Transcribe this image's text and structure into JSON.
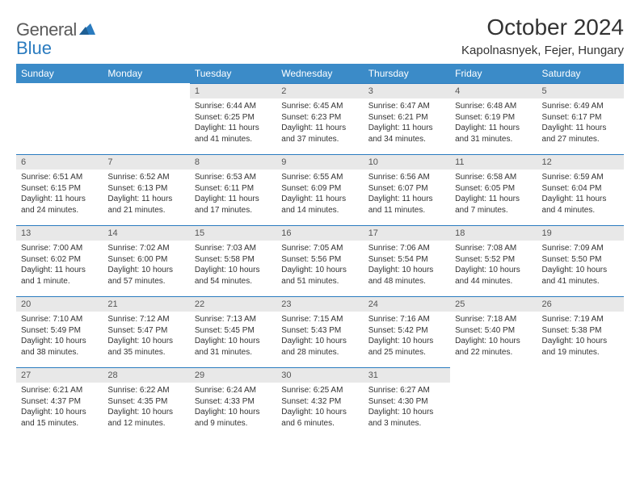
{
  "logo": {
    "name": "General",
    "blue": "Blue"
  },
  "title": "October 2024",
  "location": "Kapolnasnyek, Fejer, Hungary",
  "colors": {
    "header_bg": "#3b8bc8",
    "header_text": "#ffffff",
    "daynum_bg": "#e8e8e8",
    "daynum_border": "#2a7bbf",
    "body_text": "#333333"
  },
  "week_days": [
    "Sunday",
    "Monday",
    "Tuesday",
    "Wednesday",
    "Thursday",
    "Friday",
    "Saturday"
  ],
  "weeks": [
    [
      {
        "n": "",
        "sr": "",
        "ss": "",
        "dl": ""
      },
      {
        "n": "",
        "sr": "",
        "ss": "",
        "dl": ""
      },
      {
        "n": "1",
        "sr": "Sunrise: 6:44 AM",
        "ss": "Sunset: 6:25 PM",
        "dl": "Daylight: 11 hours and 41 minutes."
      },
      {
        "n": "2",
        "sr": "Sunrise: 6:45 AM",
        "ss": "Sunset: 6:23 PM",
        "dl": "Daylight: 11 hours and 37 minutes."
      },
      {
        "n": "3",
        "sr": "Sunrise: 6:47 AM",
        "ss": "Sunset: 6:21 PM",
        "dl": "Daylight: 11 hours and 34 minutes."
      },
      {
        "n": "4",
        "sr": "Sunrise: 6:48 AM",
        "ss": "Sunset: 6:19 PM",
        "dl": "Daylight: 11 hours and 31 minutes."
      },
      {
        "n": "5",
        "sr": "Sunrise: 6:49 AM",
        "ss": "Sunset: 6:17 PM",
        "dl": "Daylight: 11 hours and 27 minutes."
      }
    ],
    [
      {
        "n": "6",
        "sr": "Sunrise: 6:51 AM",
        "ss": "Sunset: 6:15 PM",
        "dl": "Daylight: 11 hours and 24 minutes."
      },
      {
        "n": "7",
        "sr": "Sunrise: 6:52 AM",
        "ss": "Sunset: 6:13 PM",
        "dl": "Daylight: 11 hours and 21 minutes."
      },
      {
        "n": "8",
        "sr": "Sunrise: 6:53 AM",
        "ss": "Sunset: 6:11 PM",
        "dl": "Daylight: 11 hours and 17 minutes."
      },
      {
        "n": "9",
        "sr": "Sunrise: 6:55 AM",
        "ss": "Sunset: 6:09 PM",
        "dl": "Daylight: 11 hours and 14 minutes."
      },
      {
        "n": "10",
        "sr": "Sunrise: 6:56 AM",
        "ss": "Sunset: 6:07 PM",
        "dl": "Daylight: 11 hours and 11 minutes."
      },
      {
        "n": "11",
        "sr": "Sunrise: 6:58 AM",
        "ss": "Sunset: 6:05 PM",
        "dl": "Daylight: 11 hours and 7 minutes."
      },
      {
        "n": "12",
        "sr": "Sunrise: 6:59 AM",
        "ss": "Sunset: 6:04 PM",
        "dl": "Daylight: 11 hours and 4 minutes."
      }
    ],
    [
      {
        "n": "13",
        "sr": "Sunrise: 7:00 AM",
        "ss": "Sunset: 6:02 PM",
        "dl": "Daylight: 11 hours and 1 minute."
      },
      {
        "n": "14",
        "sr": "Sunrise: 7:02 AM",
        "ss": "Sunset: 6:00 PM",
        "dl": "Daylight: 10 hours and 57 minutes."
      },
      {
        "n": "15",
        "sr": "Sunrise: 7:03 AM",
        "ss": "Sunset: 5:58 PM",
        "dl": "Daylight: 10 hours and 54 minutes."
      },
      {
        "n": "16",
        "sr": "Sunrise: 7:05 AM",
        "ss": "Sunset: 5:56 PM",
        "dl": "Daylight: 10 hours and 51 minutes."
      },
      {
        "n": "17",
        "sr": "Sunrise: 7:06 AM",
        "ss": "Sunset: 5:54 PM",
        "dl": "Daylight: 10 hours and 48 minutes."
      },
      {
        "n": "18",
        "sr": "Sunrise: 7:08 AM",
        "ss": "Sunset: 5:52 PM",
        "dl": "Daylight: 10 hours and 44 minutes."
      },
      {
        "n": "19",
        "sr": "Sunrise: 7:09 AM",
        "ss": "Sunset: 5:50 PM",
        "dl": "Daylight: 10 hours and 41 minutes."
      }
    ],
    [
      {
        "n": "20",
        "sr": "Sunrise: 7:10 AM",
        "ss": "Sunset: 5:49 PM",
        "dl": "Daylight: 10 hours and 38 minutes."
      },
      {
        "n": "21",
        "sr": "Sunrise: 7:12 AM",
        "ss": "Sunset: 5:47 PM",
        "dl": "Daylight: 10 hours and 35 minutes."
      },
      {
        "n": "22",
        "sr": "Sunrise: 7:13 AM",
        "ss": "Sunset: 5:45 PM",
        "dl": "Daylight: 10 hours and 31 minutes."
      },
      {
        "n": "23",
        "sr": "Sunrise: 7:15 AM",
        "ss": "Sunset: 5:43 PM",
        "dl": "Daylight: 10 hours and 28 minutes."
      },
      {
        "n": "24",
        "sr": "Sunrise: 7:16 AM",
        "ss": "Sunset: 5:42 PM",
        "dl": "Daylight: 10 hours and 25 minutes."
      },
      {
        "n": "25",
        "sr": "Sunrise: 7:18 AM",
        "ss": "Sunset: 5:40 PM",
        "dl": "Daylight: 10 hours and 22 minutes."
      },
      {
        "n": "26",
        "sr": "Sunrise: 7:19 AM",
        "ss": "Sunset: 5:38 PM",
        "dl": "Daylight: 10 hours and 19 minutes."
      }
    ],
    [
      {
        "n": "27",
        "sr": "Sunrise: 6:21 AM",
        "ss": "Sunset: 4:37 PM",
        "dl": "Daylight: 10 hours and 15 minutes."
      },
      {
        "n": "28",
        "sr": "Sunrise: 6:22 AM",
        "ss": "Sunset: 4:35 PM",
        "dl": "Daylight: 10 hours and 12 minutes."
      },
      {
        "n": "29",
        "sr": "Sunrise: 6:24 AM",
        "ss": "Sunset: 4:33 PM",
        "dl": "Daylight: 10 hours and 9 minutes."
      },
      {
        "n": "30",
        "sr": "Sunrise: 6:25 AM",
        "ss": "Sunset: 4:32 PM",
        "dl": "Daylight: 10 hours and 6 minutes."
      },
      {
        "n": "31",
        "sr": "Sunrise: 6:27 AM",
        "ss": "Sunset: 4:30 PM",
        "dl": "Daylight: 10 hours and 3 minutes."
      },
      {
        "n": "",
        "sr": "",
        "ss": "",
        "dl": ""
      },
      {
        "n": "",
        "sr": "",
        "ss": "",
        "dl": ""
      }
    ]
  ]
}
